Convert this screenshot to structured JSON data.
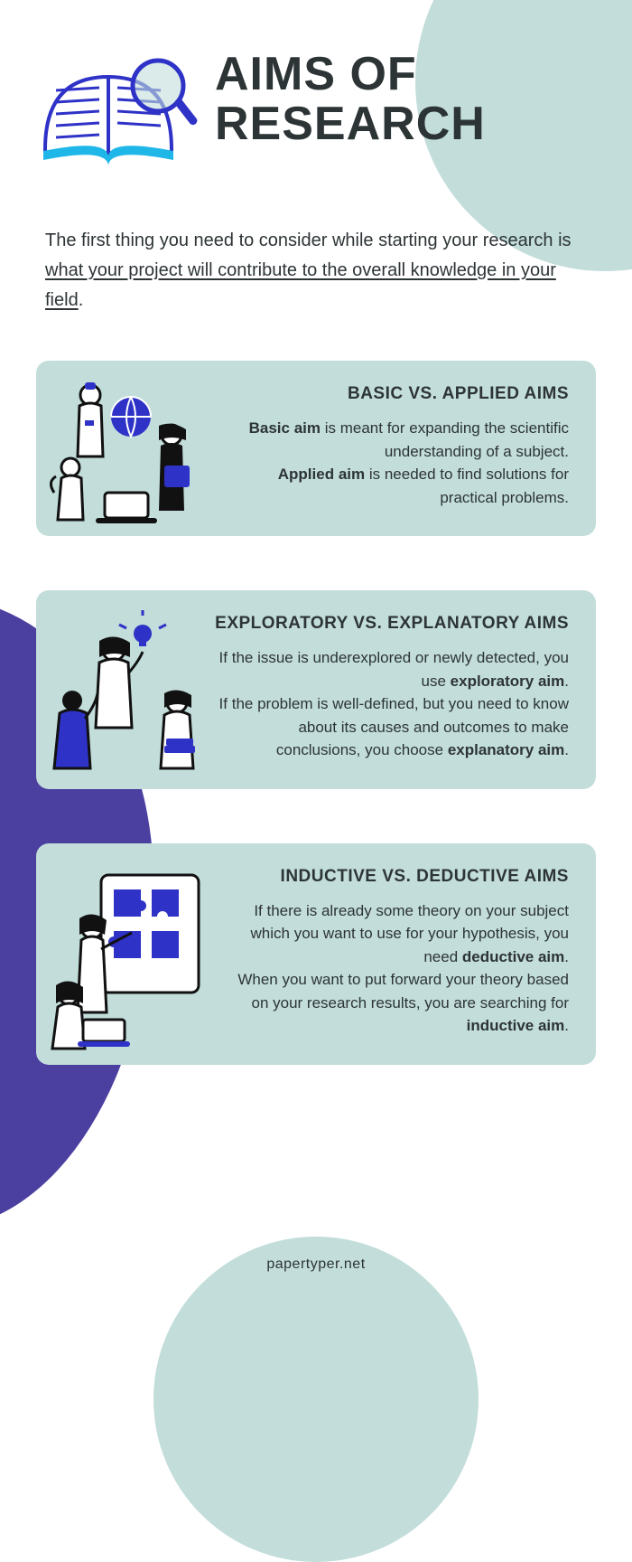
{
  "colors": {
    "mint": "#c2ddda",
    "purple": "#4b3fa0",
    "dark_text": "#2d3436",
    "cyan": "#1fb6e8",
    "royal_blue": "#2f32c7",
    "white": "#ffffff",
    "black": "#111111"
  },
  "typography": {
    "title_fontsize": 52,
    "intro_fontsize": 20,
    "card_title_fontsize": 19,
    "card_body_fontsize": 17,
    "footer_fontsize": 16
  },
  "header": {
    "title": "AIMS OF RESEARCH"
  },
  "intro": {
    "lead": "The first thing you need to consider while starting your research is ",
    "underlined": "what your project will contribute to the overall knowledge in your field",
    "tail": "."
  },
  "cards": [
    {
      "title": "BASIC VS. APPLIED AIMS",
      "segments": [
        {
          "text": "Basic aim",
          "bold": true
        },
        {
          "text": " is meant for expanding the scientific understanding of a subject."
        },
        {
          "text": "\n"
        },
        {
          "text": "Applied aim",
          "bold": true
        },
        {
          "text": " is needed to find solutions for practical problems."
        }
      ]
    },
    {
      "title": "EXPLORATORY VS. EXPLANATORY AIMS",
      "segments": [
        {
          "text": "If the issue is underexplored or newly detected, you use "
        },
        {
          "text": "exploratory aim",
          "bold": true
        },
        {
          "text": "."
        },
        {
          "text": "\n"
        },
        {
          "text": "If the problem is well-defined, but you need to know about its causes and outcomes to make conclusions, you choose "
        },
        {
          "text": "explanatory aim",
          "bold": true
        },
        {
          "text": "."
        }
      ]
    },
    {
      "title": "INDUCTIVE VS. DEDUCTIVE AIMS",
      "segments": [
        {
          "text": "If there is already some theory on your subject which you want to use for your hypothesis, you need "
        },
        {
          "text": "deductive aim",
          "bold": true
        },
        {
          "text": "."
        },
        {
          "text": "\n"
        },
        {
          "text": "When you want to put forward your theory based on your research results, you are searching for "
        },
        {
          "text": "inductive aim",
          "bold": true
        },
        {
          "text": "."
        }
      ]
    }
  ],
  "footer": {
    "text": "papertyper.net"
  }
}
